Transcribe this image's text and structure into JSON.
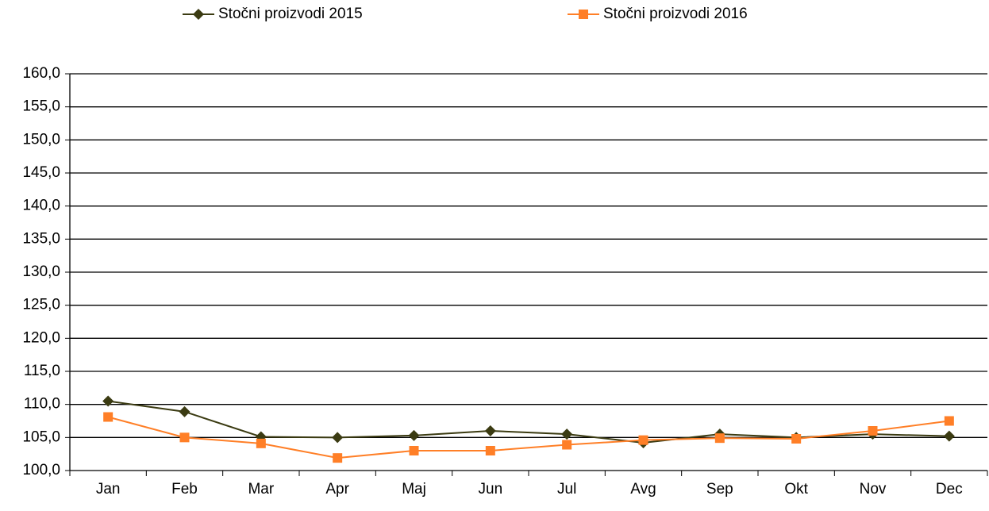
{
  "chart_data": {
    "type": "line",
    "categories": [
      "Jan",
      "Feb",
      "Mar",
      "Apr",
      "Maj",
      "Jun",
      "Jul",
      "Avg",
      "Sep",
      "Okt",
      "Nov",
      "Dec"
    ],
    "series": [
      {
        "name": "Stočni proizvodi  2015",
        "color": "#3b3b12",
        "marker": "diamond",
        "values": [
          110.5,
          108.9,
          105.1,
          105.0,
          105.3,
          106.0,
          105.5,
          104.2,
          105.5,
          105.0,
          105.5,
          105.2
        ]
      },
      {
        "name": "Stočni proizvodi  2016",
        "color": "#ff7f27",
        "marker": "square",
        "values": [
          108.1,
          105.0,
          104.1,
          101.9,
          103.0,
          103.0,
          103.9,
          104.6,
          104.9,
          104.8,
          106.0,
          107.5
        ]
      }
    ],
    "ylim": [
      100,
      160
    ],
    "yticks": [
      {
        "value": 100,
        "label": "100,0"
      },
      {
        "value": 105,
        "label": "105,0"
      },
      {
        "value": 110,
        "label": "110,0"
      },
      {
        "value": 115,
        "label": "115,0"
      },
      {
        "value": 120,
        "label": "120,0"
      },
      {
        "value": 125,
        "label": "125,0"
      },
      {
        "value": 130,
        "label": "130,0"
      },
      {
        "value": 135,
        "label": "135,0"
      },
      {
        "value": 140,
        "label": "140,0"
      },
      {
        "value": 145,
        "label": "145,0"
      },
      {
        "value": 150,
        "label": "150,0"
      },
      {
        "value": 155,
        "label": "155,0"
      },
      {
        "value": 160,
        "label": "160,0"
      }
    ],
    "grid": true,
    "legend": "top"
  }
}
